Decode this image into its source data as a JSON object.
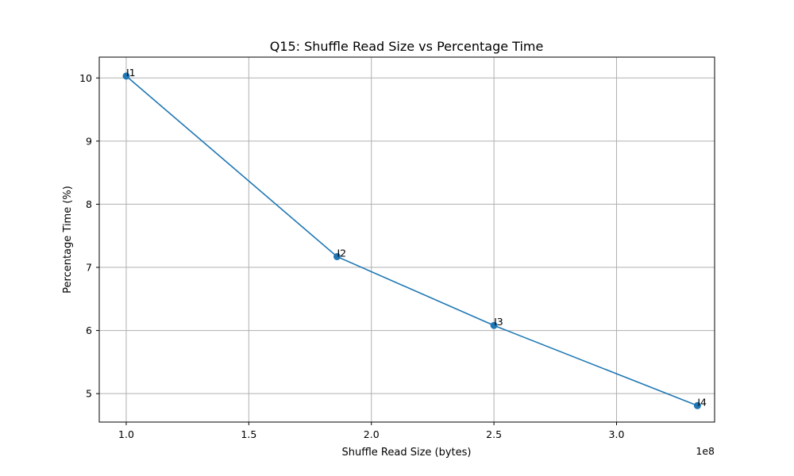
{
  "chart_data": {
    "type": "line",
    "title": "Q15: Shuffle Read Size vs Percentage Time",
    "xlabel": "Shuffle Read Size (bytes)",
    "ylabel": "Percentage Time (%)",
    "x_offset_text": "1e8",
    "xlim": [
      0.89,
      3.4
    ],
    "ylim": [
      4.55,
      10.33
    ],
    "x_ticks": [
      1.0,
      1.5,
      2.0,
      2.5,
      3.0
    ],
    "x_tick_labels": [
      "1.0",
      "1.5",
      "2.0",
      "2.5",
      "3.0"
    ],
    "y_ticks": [
      5,
      6,
      7,
      8,
      9,
      10
    ],
    "y_tick_labels": [
      "5",
      "6",
      "7",
      "8",
      "9",
      "10"
    ],
    "grid": true,
    "series": [
      {
        "color": "#1f77b4",
        "x": [
          1.0,
          1.86,
          2.5,
          3.33
        ],
        "y": [
          10.03,
          7.17,
          6.08,
          4.81
        ],
        "labels": [
          "I1",
          "I2",
          "I3",
          "I4"
        ]
      }
    ]
  }
}
